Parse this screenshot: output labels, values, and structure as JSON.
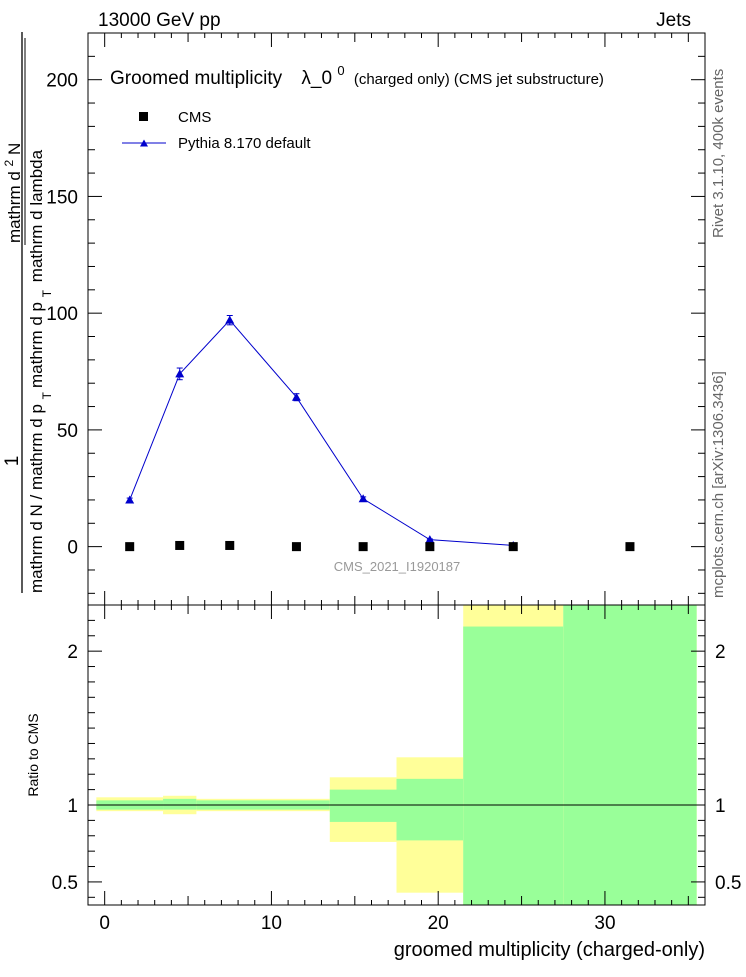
{
  "header": {
    "left": "13000 GeV pp",
    "right": "Jets"
  },
  "side_labels": {
    "rivet": "Rivet 3.1.10,  400k events",
    "mcplots": "mcplots.cern.ch [arXiv:1306.3436]"
  },
  "chart_data": [
    {
      "type": "scatter",
      "title": {
        "main": "Groomed multiplicity",
        "lambda": "λ_0",
        "sup": "0",
        "sub": "(charged only) (CMS jet substructure)"
      },
      "ylabel": {
        "numerator": "1",
        "denominator": "mathrm d N / mathrm d p",
        "denominator_sub": "T",
        "right_upper": "mathrm d",
        "right_upper_sup": "2",
        "right_upper_rest": "N",
        "right_lower": "mathrm d p",
        "right_lower_sub": "T",
        "right_lower_rest": "mathrm d lambda"
      },
      "watermark": "CMS_2021_I1920187",
      "ylim": [
        -25,
        220
      ],
      "xlim": [
        -1,
        36
      ],
      "yticks": [
        0,
        50,
        100,
        150,
        200
      ],
      "series": [
        {
          "name": "CMS",
          "marker": "square",
          "color": "#000000",
          "points": [
            {
              "x": 1.5,
              "y": 0
            },
            {
              "x": 4.5,
              "y": 0.5
            },
            {
              "x": 7.5,
              "y": 0.5
            },
            {
              "x": 11.5,
              "y": 0
            },
            {
              "x": 15.5,
              "y": 0
            },
            {
              "x": 19.5,
              "y": 0
            },
            {
              "x": 24.5,
              "y": 0
            },
            {
              "x": 31.5,
              "y": 0
            }
          ]
        },
        {
          "name": "Pythia 8.170 default",
          "marker": "triangle",
          "color": "#0000cc",
          "points": [
            {
              "x": 1.5,
              "y": 20,
              "err": 0.8
            },
            {
              "x": 4.5,
              "y": 74,
              "err": 2.5
            },
            {
              "x": 7.5,
              "y": 97,
              "err": 2.0
            },
            {
              "x": 11.5,
              "y": 64,
              "err": 1.5
            },
            {
              "x": 15.5,
              "y": 20.5,
              "err": 0.8
            },
            {
              "x": 19.5,
              "y": 3,
              "err": 0.3
            },
            {
              "x": 24.5,
              "y": 0.5,
              "err": 0.1
            }
          ]
        }
      ],
      "legend": "top-left"
    },
    {
      "type": "area",
      "ylabel": "Ratio to CMS",
      "xlabel": "groomed multiplicity (charged-only)",
      "ylim": [
        0.35,
        2.3
      ],
      "xlim": [
        -1,
        36
      ],
      "xticks": [
        0,
        10,
        20,
        30
      ],
      "yticks": [
        0.5,
        1,
        2
      ],
      "reference": 1,
      "bands": [
        {
          "x0": -0.5,
          "x1": 3.5,
          "green": [
            0.97,
            1.03
          ],
          "yellow": [
            0.96,
            1.05
          ]
        },
        {
          "x0": 3.5,
          "x1": 5.5,
          "green": [
            0.97,
            1.04
          ],
          "yellow": [
            0.94,
            1.06
          ]
        },
        {
          "x0": 5.5,
          "x1": 13.5,
          "green": [
            0.97,
            1.03
          ],
          "yellow": [
            0.96,
            1.04
          ]
        },
        {
          "x0": 13.5,
          "x1": 17.5,
          "green": [
            0.89,
            1.1
          ],
          "yellow": [
            0.76,
            1.18
          ]
        },
        {
          "x0": 17.5,
          "x1": 21.5,
          "green": [
            0.77,
            1.17
          ],
          "yellow": [
            0.43,
            1.31
          ]
        },
        {
          "x0": 21.5,
          "x1": 27.5,
          "green": [
            0.35,
            2.16
          ],
          "yellow": [
            0.35,
            2.3
          ]
        },
        {
          "x0": 27.5,
          "x1": 35.5,
          "green": [
            0.35,
            2.3
          ],
          "yellow": [
            0.35,
            2.3
          ]
        }
      ]
    }
  ]
}
